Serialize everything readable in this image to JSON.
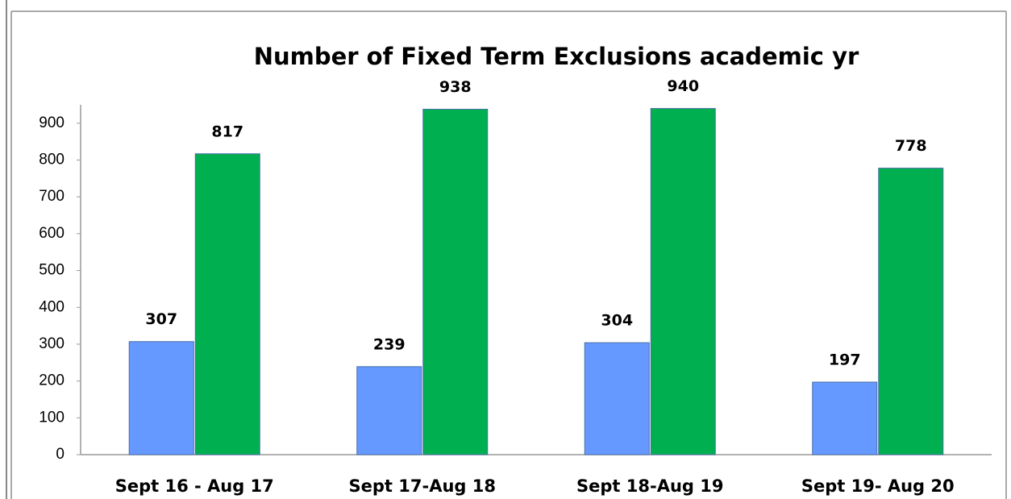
{
  "chart_data": {
    "type": "bar",
    "title": "Number of Fixed Term Exclusions  academic yr",
    "categories": [
      "Sept 16 - Aug 17",
      "Sept 17-Aug 18",
      "Sept 18-Aug 19",
      "Sept 19- Aug 20"
    ],
    "series": [
      {
        "color": "#6699ff",
        "values": [
          307,
          239,
          304,
          197
        ]
      },
      {
        "color": "#00b050",
        "values": [
          817,
          938,
          940,
          778
        ]
      }
    ],
    "ylim": [
      0,
      950
    ],
    "yticks": [
      0,
      100,
      200,
      300,
      400,
      500,
      600,
      700,
      800,
      900
    ],
    "grid": false
  }
}
